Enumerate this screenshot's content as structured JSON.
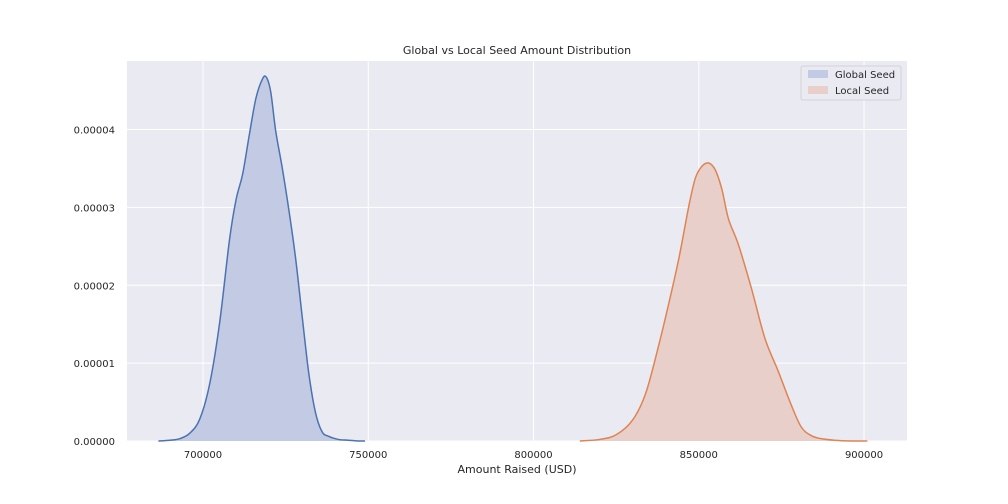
{
  "chart_data": {
    "type": "area",
    "title": "Global vs Local Seed Amount Distribution",
    "xlabel": "Amount Raised (USD)",
    "ylabel": "",
    "xlim": [
      677000,
      913000
    ],
    "ylim": [
      0,
      4.88e-05
    ],
    "x_ticks": [
      700000,
      750000,
      800000,
      850000,
      900000
    ],
    "x_tick_labels": [
      "700000",
      "750000",
      "800000",
      "850000",
      "900000"
    ],
    "y_ticks": [
      0,
      1e-05,
      2e-05,
      3e-05,
      4e-05
    ],
    "y_tick_labels": [
      "0.00000",
      "0.00001",
      "0.00002",
      "0.00003",
      "0.00004"
    ],
    "grid": true,
    "legend_position": "top-right",
    "series": [
      {
        "name": "Global Seed",
        "color": "#4c72b0",
        "fill": "#c2cae4",
        "x": [
          686500,
          690000,
          693000,
          696000,
          699000,
          702000,
          705000,
          708000,
          710000,
          712000,
          714000,
          716000,
          718000,
          719200,
          720500,
          722000,
          724000,
          726000,
          728000,
          730000,
          732000,
          734000,
          736000,
          738000,
          741000,
          744000,
          747000,
          749000
        ],
        "y": [
          0.0,
          1e-07,
          3e-07,
          1e-06,
          2.8e-06,
          7.3e-06,
          1.51e-05,
          2.58e-05,
          3.1e-05,
          3.43e-05,
          3.93e-05,
          4.4e-05,
          4.65e-05,
          4.67e-05,
          4.48e-05,
          3.98e-05,
          3.5e-05,
          2.96e-05,
          2.35e-05,
          1.6e-05,
          8.7e-06,
          3.7e-06,
          1.2e-06,
          6e-07,
          2e-07,
          1e-07,
          0.0,
          0.0
        ]
      },
      {
        "name": "Local Seed",
        "color": "#dd8452",
        "fill": "#e8cfca",
        "x": [
          814000,
          820000,
          825000,
          830000,
          834000,
          838000,
          841000,
          844000,
          847000,
          849000,
          851000,
          853000,
          855000,
          857000,
          859000,
          862000,
          866000,
          870000,
          874000,
          878000,
          881000,
          884000,
          887000,
          891000,
          896000,
          901000
        ],
        "y": [
          0.0,
          2e-07,
          8e-07,
          2.7e-06,
          6.2e-06,
          1.25e-05,
          1.78e-05,
          2.35e-05,
          3.02e-05,
          3.38e-05,
          3.53e-05,
          3.57e-05,
          3.48e-05,
          3.23e-05,
          2.85e-05,
          2.52e-05,
          1.95e-05,
          1.32e-05,
          9e-06,
          4.6e-06,
          1.8e-06,
          7e-07,
          3e-07,
          1e-07,
          0.0,
          0.0
        ]
      }
    ]
  }
}
